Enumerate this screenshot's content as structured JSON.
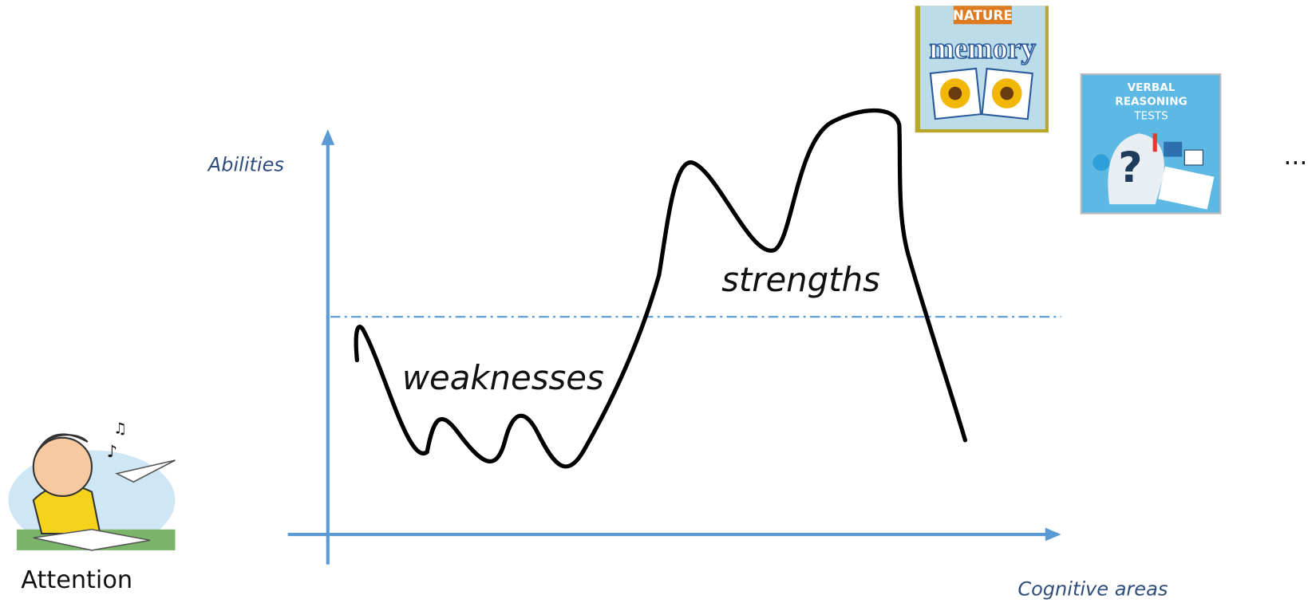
{
  "axes": {
    "y_label": "Abilities",
    "x_label": "Cognitive areas"
  },
  "curve_labels": {
    "low": "weaknesses",
    "high": "strengths"
  },
  "examples": {
    "attention": {
      "caption": "Attention"
    },
    "memory": {
      "banner": "NATURE",
      "title": "memory"
    },
    "verbal": {
      "lines": [
        "VERBAL",
        "REASONING",
        "TESTS"
      ]
    }
  },
  "more": "..."
}
